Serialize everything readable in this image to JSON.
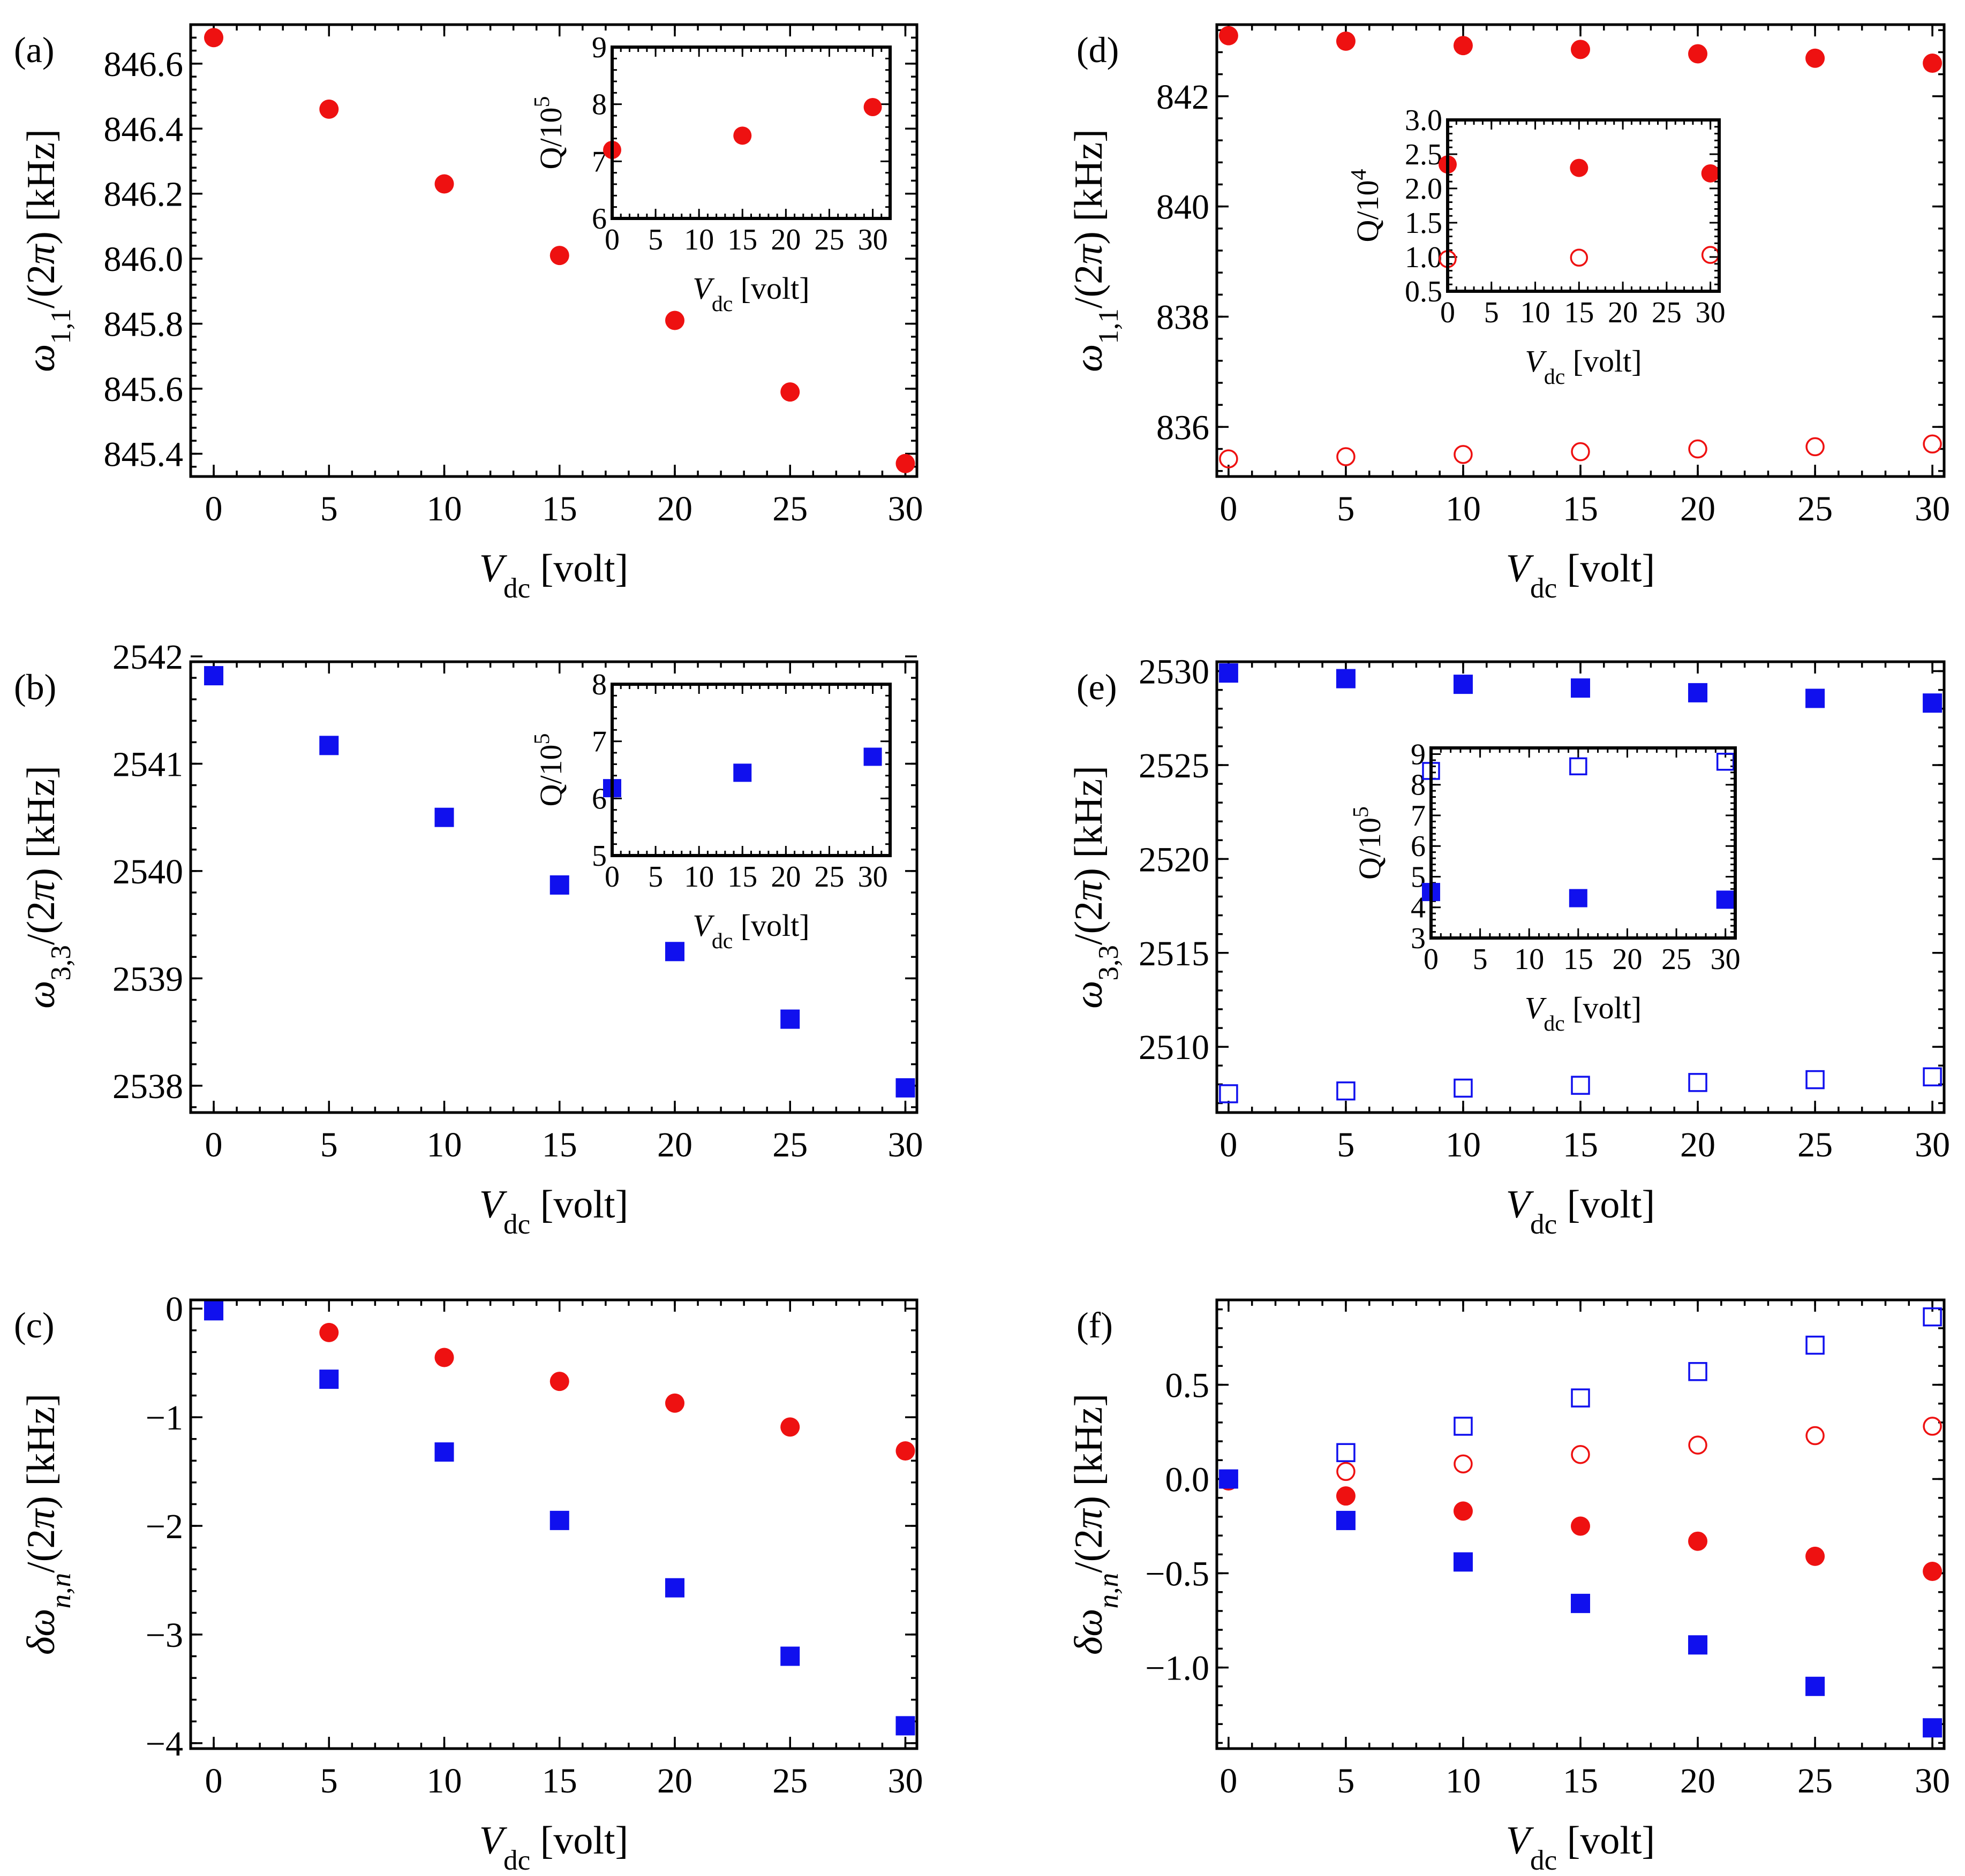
{
  "colors": {
    "red": "#ee1111",
    "blue": "#1010ee",
    "frame": "#000000"
  },
  "chart_data": [
    {
      "id": "a",
      "type": "scatter",
      "panel_label": "(a)",
      "xlabel": "V_dc [volt]",
      "ylabel": "ω_1,1/(2π) [kHz]",
      "xlim": [
        -1,
        30.5
      ],
      "ylim": [
        845.33,
        846.72
      ],
      "xticks": [
        0,
        5,
        10,
        15,
        20,
        25,
        30
      ],
      "yticks": [
        845.4,
        845.6,
        845.8,
        846.0,
        846.2,
        846.4,
        846.6
      ],
      "ytick_decimals": 1,
      "series": [
        {
          "color": "red",
          "marker": "circle",
          "filled": true,
          "x": [
            0,
            5,
            10,
            15,
            20,
            25,
            30
          ],
          "y": [
            846.68,
            846.46,
            846.23,
            846.01,
            845.81,
            845.59,
            845.37
          ]
        }
      ],
      "inset": {
        "xlabel": "V_dc [volt]",
        "ylabel": "Q/10^5",
        "xlim": [
          0,
          32
        ],
        "ylim": [
          6,
          9
        ],
        "xticks": [
          0,
          5,
          10,
          15,
          20,
          25,
          30
        ],
        "yticks": [
          6,
          7,
          8,
          9
        ],
        "ytick_decimals": 0,
        "series": [
          {
            "color": "red",
            "marker": "circle",
            "filled": true,
            "x": [
              0,
              15,
              30
            ],
            "y": [
              7.2,
              7.45,
              7.95
            ]
          }
        ]
      }
    },
    {
      "id": "b",
      "type": "scatter",
      "panel_label": "(b)",
      "xlabel": "V_dc [volt]",
      "ylabel": "ω_3,3/(2π) [kHz]",
      "xlim": [
        -1,
        30.5
      ],
      "ylim": [
        2537.75,
        2541.95
      ],
      "xticks": [
        0,
        5,
        10,
        15,
        20,
        25,
        30
      ],
      "yticks": [
        2538,
        2539,
        2540,
        2541,
        2542
      ],
      "ytick_decimals": 0,
      "series": [
        {
          "color": "blue",
          "marker": "square",
          "filled": true,
          "x": [
            0,
            5,
            10,
            15,
            20,
            25,
            30
          ],
          "y": [
            2541.82,
            2541.17,
            2540.5,
            2539.87,
            2539.25,
            2538.62,
            2537.98
          ]
        }
      ],
      "inset": {
        "xlabel": "V_dc [volt]",
        "ylabel": "Q/10^5",
        "xlim": [
          0,
          32
        ],
        "ylim": [
          5,
          8
        ],
        "xticks": [
          0,
          5,
          10,
          15,
          20,
          25,
          30
        ],
        "yticks": [
          5,
          6,
          7,
          8
        ],
        "ytick_decimals": 0,
        "series": [
          {
            "color": "blue",
            "marker": "square",
            "filled": true,
            "x": [
              0,
              15,
              30
            ],
            "y": [
              6.18,
              6.45,
              6.73
            ]
          }
        ]
      }
    },
    {
      "id": "c",
      "type": "scatter",
      "panel_label": "(c)",
      "xlabel": "V_dc [volt]",
      "ylabel": "δω_n,n/(2π) [kHz]",
      "xlim": [
        -1,
        30.5
      ],
      "ylim": [
        -4.05,
        0.08
      ],
      "xticks": [
        0,
        5,
        10,
        15,
        20,
        25,
        30
      ],
      "yticks": [
        -4,
        -3,
        -2,
        -1,
        0
      ],
      "ytick_decimals": 0,
      "series": [
        {
          "color": "red",
          "marker": "circle",
          "filled": true,
          "x": [
            0,
            5,
            10,
            15,
            20,
            25,
            30
          ],
          "y": [
            0.0,
            -0.22,
            -0.45,
            -0.67,
            -0.87,
            -1.09,
            -1.31
          ]
        },
        {
          "color": "blue",
          "marker": "square",
          "filled": true,
          "x": [
            0,
            5,
            10,
            15,
            20,
            25,
            30
          ],
          "y": [
            -0.02,
            -0.65,
            -1.32,
            -1.95,
            -2.57,
            -3.2,
            -3.84
          ]
        }
      ]
    },
    {
      "id": "d",
      "type": "scatter",
      "panel_label": "(d)",
      "xlabel": "V_dc [volt]",
      "ylabel": "ω_1,1/(2π) [kHz]",
      "xlim": [
        -0.5,
        30.5
      ],
      "ylim": [
        835.1,
        843.3
      ],
      "xticks": [
        0,
        5,
        10,
        15,
        20,
        25,
        30
      ],
      "yticks": [
        836,
        838,
        840,
        842
      ],
      "ytick_decimals": 0,
      "series": [
        {
          "color": "red",
          "marker": "circle",
          "filled": true,
          "x": [
            0,
            5,
            10,
            15,
            20,
            25,
            30
          ],
          "y": [
            843.1,
            843.0,
            842.92,
            842.85,
            842.77,
            842.69,
            842.6
          ]
        },
        {
          "color": "red",
          "marker": "circle",
          "filled": false,
          "x": [
            0,
            5,
            10,
            15,
            20,
            25,
            30
          ],
          "y": [
            835.42,
            835.46,
            835.5,
            835.55,
            835.6,
            835.64,
            835.69
          ]
        }
      ],
      "inset": {
        "xlabel": "V_dc [volt]",
        "ylabel": "Q/10^4",
        "xlim": [
          0,
          31
        ],
        "ylim": [
          0.5,
          3.0
        ],
        "xticks": [
          0,
          5,
          10,
          15,
          20,
          25,
          30
        ],
        "yticks": [
          0.5,
          1.0,
          1.5,
          2.0,
          2.5,
          3.0
        ],
        "ytick_decimals": 1,
        "series": [
          {
            "color": "red",
            "marker": "circle",
            "filled": true,
            "x": [
              0,
              15,
              30
            ],
            "y": [
              2.35,
              2.3,
              2.22
            ]
          },
          {
            "color": "red",
            "marker": "circle",
            "filled": false,
            "x": [
              0,
              15,
              30
            ],
            "y": [
              0.97,
              0.99,
              1.03
            ]
          }
        ]
      }
    },
    {
      "id": "e",
      "type": "scatter",
      "panel_label": "(e)",
      "xlabel": "V_dc [volt]",
      "ylabel": "ω_3,3/(2π) [kHz]",
      "xlim": [
        -0.5,
        30.5
      ],
      "ylim": [
        2506.5,
        2530.5
      ],
      "xticks": [
        0,
        5,
        10,
        15,
        20,
        25,
        30
      ],
      "yticks": [
        2510,
        2515,
        2520,
        2525,
        2530
      ],
      "ytick_decimals": 0,
      "series": [
        {
          "color": "blue",
          "marker": "square",
          "filled": true,
          "x": [
            0,
            5,
            10,
            15,
            20,
            25,
            30
          ],
          "y": [
            2529.9,
            2529.6,
            2529.3,
            2529.1,
            2528.85,
            2528.55,
            2528.3
          ]
        },
        {
          "color": "blue",
          "marker": "square",
          "filled": false,
          "x": [
            0,
            5,
            10,
            15,
            20,
            25,
            30
          ],
          "y": [
            2507.5,
            2507.65,
            2507.8,
            2507.95,
            2508.1,
            2508.25,
            2508.4
          ]
        }
      ],
      "inset": {
        "xlabel": "V_dc [volt]",
        "ylabel": "Q/10^5",
        "xlim": [
          0,
          31
        ],
        "ylim": [
          3,
          9.2
        ],
        "xticks": [
          0,
          5,
          10,
          15,
          20,
          25,
          30
        ],
        "yticks": [
          3,
          4,
          5,
          6,
          7,
          8,
          9
        ],
        "ytick_decimals": 0,
        "series": [
          {
            "color": "blue",
            "marker": "square",
            "filled": true,
            "x": [
              0,
              15,
              30
            ],
            "y": [
              4.5,
              4.3,
              4.25
            ]
          },
          {
            "color": "blue",
            "marker": "square",
            "filled": false,
            "x": [
              0,
              15,
              30
            ],
            "y": [
              8.45,
              8.6,
              8.75
            ]
          }
        ]
      }
    },
    {
      "id": "f",
      "type": "scatter",
      "panel_label": "(f)",
      "xlabel": "V_dc [volt]",
      "ylabel": "δω_n,n/(2π) [kHz]",
      "xlim": [
        -0.5,
        30.5
      ],
      "ylim": [
        -1.43,
        0.95
      ],
      "xticks": [
        0,
        5,
        10,
        15,
        20,
        25,
        30
      ],
      "yticks": [
        -1.0,
        -0.5,
        0.0,
        0.5
      ],
      "ytick_decimals": 1,
      "series": [
        {
          "color": "blue",
          "marker": "square",
          "filled": false,
          "x": [
            5,
            10,
            15,
            20,
            25,
            30
          ],
          "y": [
            0.14,
            0.28,
            0.43,
            0.57,
            0.71,
            0.86
          ]
        },
        {
          "color": "red",
          "marker": "circle",
          "filled": false,
          "x": [
            5,
            10,
            15,
            20,
            25,
            30
          ],
          "y": [
            0.04,
            0.08,
            0.13,
            0.18,
            0.23,
            0.28
          ]
        },
        {
          "color": "red",
          "marker": "circle",
          "filled": true,
          "x": [
            0,
            5,
            10,
            15,
            20,
            25,
            30
          ],
          "y": [
            -0.01,
            -0.09,
            -0.17,
            -0.25,
            -0.33,
            -0.41,
            -0.49
          ]
        },
        {
          "color": "blue",
          "marker": "square",
          "filled": true,
          "x": [
            0,
            5,
            10,
            15,
            20,
            25,
            30
          ],
          "y": [
            0.0,
            -0.22,
            -0.44,
            -0.66,
            -0.88,
            -1.1,
            -1.32
          ]
        }
      ]
    }
  ]
}
